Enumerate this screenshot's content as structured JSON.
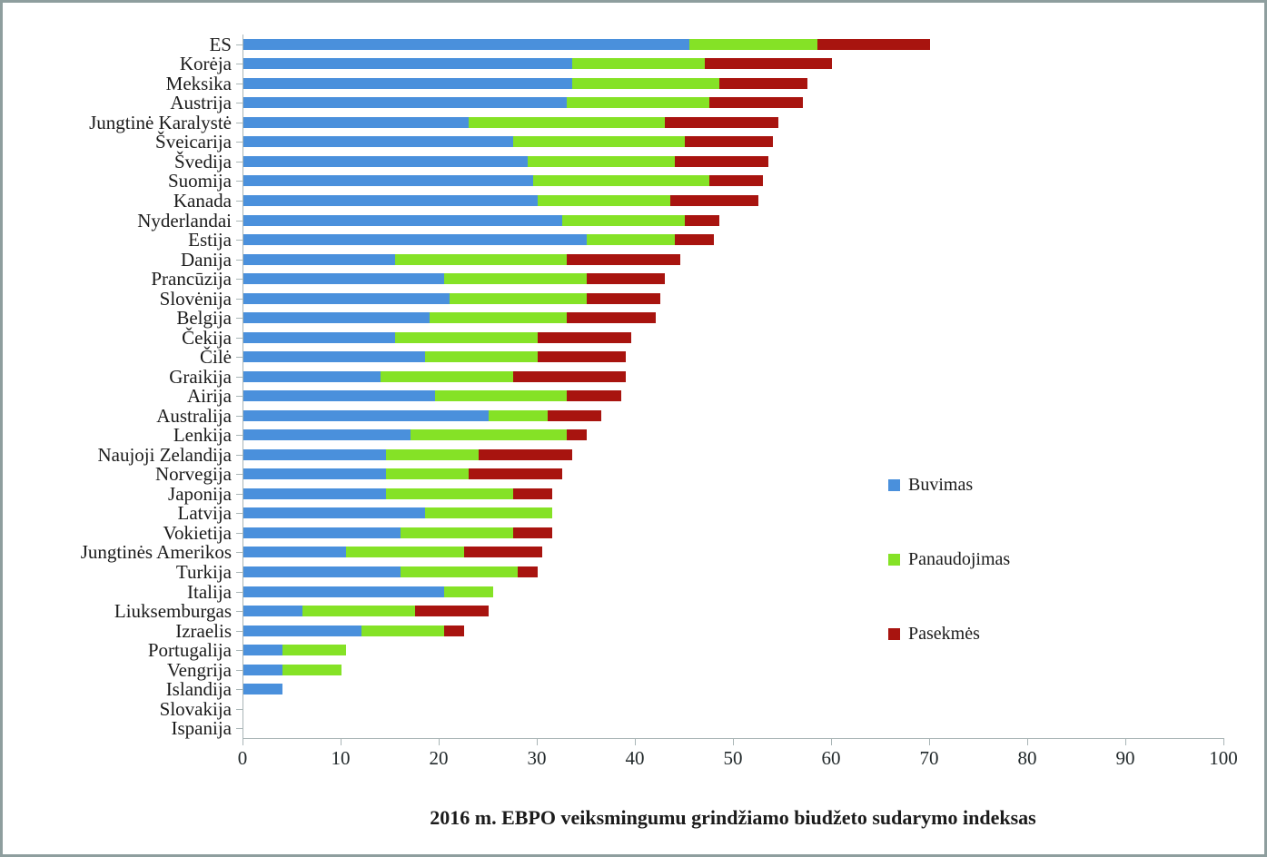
{
  "chart_data": {
    "type": "bar",
    "orientation": "horizontal",
    "stacked": true,
    "title": "2016 m. EBPO veiksmingumu grindžiamo biudžeto sudarymo indeksas",
    "xlabel": "",
    "ylabel": "",
    "xlim": [
      0,
      100
    ],
    "x_ticks": [
      0,
      10,
      20,
      30,
      40,
      50,
      60,
      70,
      80,
      90,
      100
    ],
    "grid": false,
    "legend_position": "right",
    "categories": [
      "ES",
      "Korėja",
      "Meksika",
      "Austrija",
      "Jungtinė Karalystė",
      "Šveicarija",
      "Švedija",
      "Suomija",
      "Kanada",
      "Nyderlandai",
      "Estija",
      "Danija",
      "Prancūzija",
      "Slovėnija",
      "Belgija",
      "Čekija",
      "Čilė",
      "Graikija",
      "Airija",
      "Australija",
      "Lenkija",
      "Naujoji Zelandija",
      "Norvegija",
      "Japonija",
      "Latvija",
      "Vokietija",
      "Jungtinės Amerikos",
      "Turkija",
      "Italija",
      "Liuksemburgas",
      "Izraelis",
      "Portugalija",
      "Vengrija",
      "Islandija",
      "Slovakija",
      "Ispanija"
    ],
    "series": [
      {
        "name": "Buvimas",
        "color": "#4a90dc",
        "values": [
          45.5,
          33.5,
          33.5,
          33,
          23,
          27.5,
          29,
          29.5,
          30,
          32.5,
          35,
          15.5,
          20.5,
          21,
          19,
          15.5,
          18.5,
          14,
          19.5,
          25,
          17,
          14.5,
          14.5,
          14.5,
          18.5,
          16,
          10.5,
          16,
          20.5,
          6,
          12,
          4,
          4,
          4,
          0,
          0
        ]
      },
      {
        "name": "Panaudojimas",
        "color": "#85e226",
        "values": [
          13,
          13.5,
          15,
          14.5,
          20,
          17.5,
          15,
          18,
          13.5,
          12.5,
          9,
          17.5,
          14.5,
          14,
          14,
          14.5,
          11.5,
          13.5,
          13.5,
          6,
          16,
          9.5,
          8.5,
          13,
          13,
          11.5,
          12,
          12,
          5,
          11.5,
          8.5,
          6.5,
          6,
          0,
          0,
          0
        ]
      },
      {
        "name": "Pasekmės",
        "color": "#a8140f",
        "values": [
          11.5,
          13,
          9,
          9.5,
          11.5,
          9,
          9.5,
          5.5,
          9,
          3.5,
          4,
          11.5,
          8,
          7.5,
          9,
          9.5,
          9,
          11.5,
          5.5,
          5.5,
          2,
          9.5,
          9.5,
          4,
          0,
          4,
          8,
          2,
          0,
          7.5,
          2,
          0,
          0,
          0,
          0,
          0
        ]
      }
    ]
  },
  "colors": {
    "frame_border": "#8e9e9e",
    "axis": "#a9b5b6",
    "text": "#1b1b1b",
    "background": "#ffffff"
  }
}
